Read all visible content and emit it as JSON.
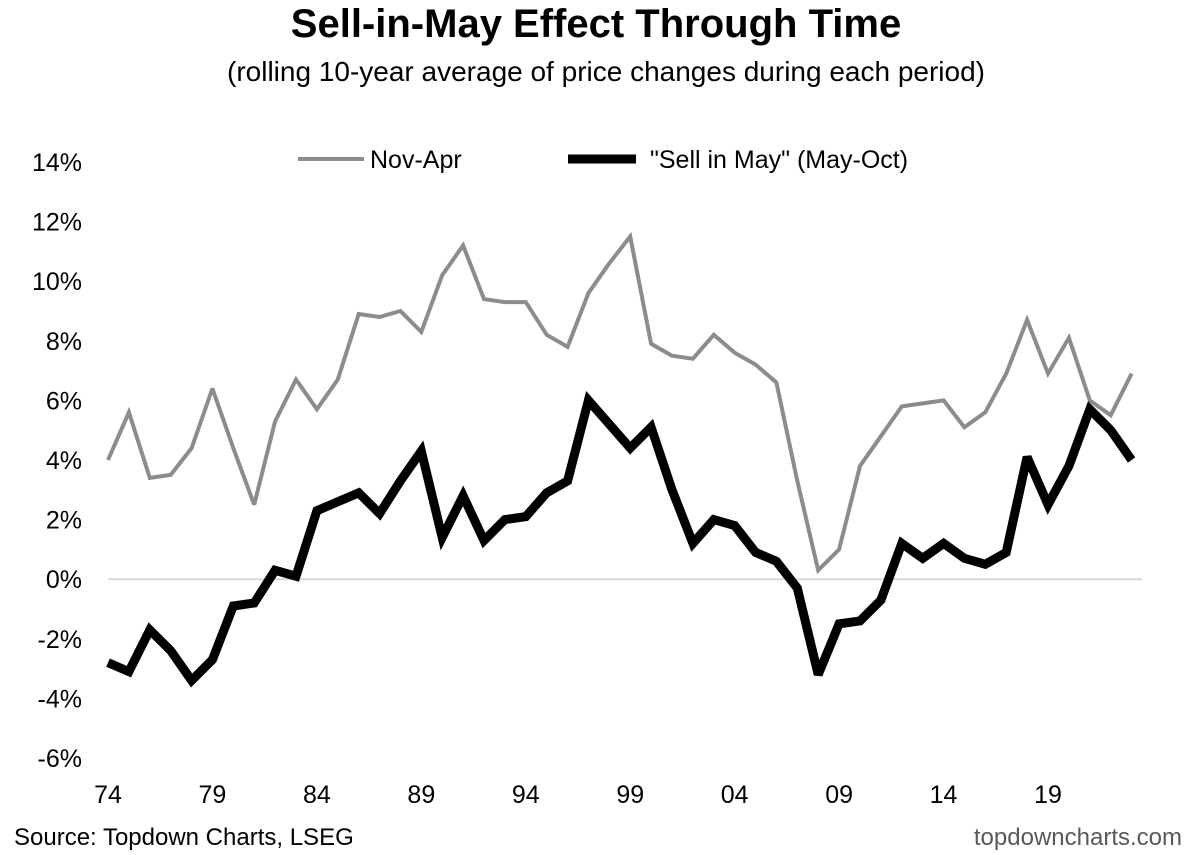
{
  "chart_data": {
    "type": "line",
    "title": "Sell-in-May Effect Through Time",
    "subtitle": "(rolling 10-year average of price changes during each period)",
    "x_tick_labels": [
      "74",
      "79",
      "84",
      "89",
      "94",
      "99",
      "04",
      "09",
      "14",
      "19"
    ],
    "x": [
      1974,
      1975,
      1976,
      1977,
      1978,
      1979,
      1980,
      1981,
      1982,
      1983,
      1984,
      1985,
      1986,
      1987,
      1988,
      1989,
      1990,
      1991,
      1992,
      1993,
      1994,
      1995,
      1996,
      1997,
      1998,
      1999,
      2000,
      2001,
      2002,
      2003,
      2004,
      2005,
      2006,
      2007,
      2008,
      2009,
      2010,
      2011,
      2012,
      2013,
      2014,
      2015,
      2016,
      2017,
      2018,
      2019,
      2020,
      2021,
      2022,
      2023
    ],
    "xlim": [
      1974,
      2023.5
    ],
    "ylim": [
      -6,
      14
    ],
    "y_tick_labels": [
      "-6%",
      "-4%",
      "-2%",
      "0%",
      "2%",
      "4%",
      "6%",
      "8%",
      "10%",
      "12%",
      "14%"
    ],
    "legend_position": "top",
    "series": [
      {
        "name": "Nov-Apr",
        "color": "#8c8c8c",
        "values": [
          4.0,
          5.6,
          3.4,
          3.5,
          4.4,
          6.4,
          4.4,
          2.5,
          5.3,
          6.7,
          5.7,
          6.7,
          8.9,
          8.8,
          9.0,
          8.3,
          10.2,
          11.2,
          9.4,
          9.3,
          9.3,
          8.2,
          7.8,
          9.6,
          10.6,
          11.5,
          7.9,
          7.5,
          7.4,
          8.2,
          7.6,
          7.2,
          6.6,
          3.3,
          0.3,
          1.0,
          3.8,
          4.8,
          5.8,
          5.9,
          6.0,
          5.1,
          5.6,
          6.9,
          8.7,
          6.9,
          8.1,
          6.0,
          5.5,
          6.9
        ]
      },
      {
        "name": "\"Sell in May\" (May-Oct)",
        "color": "#000000",
        "values": [
          -2.8,
          -3.1,
          -1.7,
          -2.4,
          -3.4,
          -2.7,
          -0.9,
          -0.8,
          0.3,
          0.1,
          2.3,
          2.6,
          2.9,
          2.2,
          3.3,
          4.3,
          1.4,
          2.8,
          1.3,
          2.0,
          2.1,
          2.9,
          3.3,
          6.0,
          5.2,
          4.4,
          5.1,
          3.0,
          1.2,
          2.0,
          1.8,
          0.9,
          0.6,
          -0.3,
          -3.2,
          -1.5,
          -1.4,
          -0.7,
          1.2,
          0.7,
          1.2,
          0.7,
          0.5,
          0.9,
          4.1,
          2.5,
          3.8,
          5.7,
          5.0,
          4.0
        ]
      }
    ],
    "grid": false,
    "zero_line": true
  },
  "footer": {
    "source": "Source: Topdown Charts, LSEG",
    "watermark": "topdowncharts.com"
  }
}
